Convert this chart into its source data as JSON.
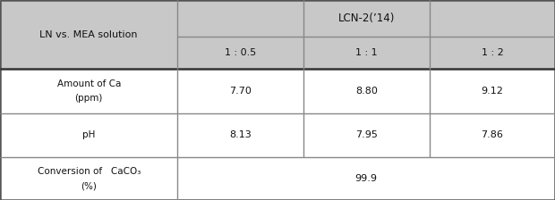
{
  "header_bg": "#c8c8c8",
  "header_text_color": "#111111",
  "body_bg": "#ffffff",
  "body_text_color": "#111111",
  "border_color": "#888888",
  "col1_header": "LN vs. MEA solution",
  "top_header": "LCN-2(’14)",
  "sub_headers": [
    "1 : 0.5",
    "1 : 1",
    "1 : 2"
  ],
  "rows": [
    {
      "label_lines": [
        "Amount of Ca",
        "(ppm)"
      ],
      "values": [
        "7.70",
        "8.80",
        "9.12"
      ],
      "span": false
    },
    {
      "label_lines": [
        "pH"
      ],
      "values": [
        "8.13",
        "7.95",
        "7.86"
      ],
      "span": false
    },
    {
      "label_lines": [
        "Conversion of   CaCO₃",
        "(%)"
      ],
      "values": [
        "99.9"
      ],
      "span": true
    }
  ],
  "figsize": [
    6.2,
    2.24
  ],
  "dpi": 100
}
